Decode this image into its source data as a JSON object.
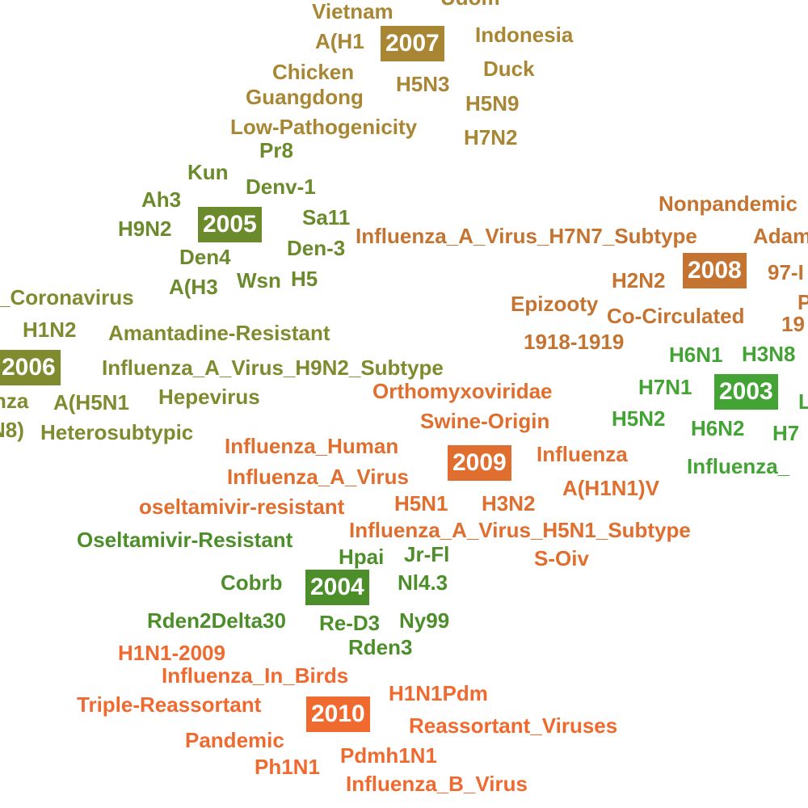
{
  "palette": {
    "2003": "#43a435",
    "2004": "#4c8f2a",
    "2005": "#6b8a2c",
    "2006": "#808a2e",
    "2007": "#a88634",
    "2008": "#c47430",
    "2009": "#e06e2e",
    "2010": "#f06a30"
  },
  "clusters": [
    {
      "year": "2007",
      "terms": [
        "Udom",
        "Vietnam",
        "A(H1",
        "Indonesia",
        "Chicken",
        "Duck",
        "H5N3",
        "Guangdong",
        "H5N9",
        "Low-Pathogenicity",
        "H7N2"
      ]
    },
    {
      "year": "2005",
      "terms": [
        "Pr8",
        "Kun",
        "Denv-1",
        "Ah3",
        "H9N2",
        "Sa11",
        "Den-3",
        "Den4",
        "A(H3",
        "Wsn",
        "H5"
      ]
    },
    {
      "year": "2006",
      "terms": [
        "_Coronavirus",
        "H1N2",
        "Amantadine-Resistant",
        "Influenza_A_Virus_H9N2_Subtype",
        "nza",
        "A(H5N1",
        "Hepevirus",
        "N8)",
        "Heterosubtypic"
      ]
    },
    {
      "year": "2008",
      "terms": [
        "Nonpandemic",
        "Influenza_A_Virus_H7N7_Subtype",
        "Adam",
        "97-I",
        "H2N2",
        "Epizooty",
        "Co-Circulated",
        "P",
        "19",
        "1918-1919"
      ]
    },
    {
      "year": "2003",
      "terms": [
        "H6N1",
        "H3N8",
        "H7N1",
        "L",
        "H5N2",
        "H6N2",
        "H7",
        "Influenza_"
      ]
    },
    {
      "year": "2009",
      "terms": [
        "Orthomyxoviridae",
        "Swine-Origin",
        "Influenza_Human",
        "Influenza",
        "Influenza_A_Virus",
        "A(H1N1)V",
        "oseltamivir-resistant",
        "H5N1",
        "H3N2",
        "Influenza_A_Virus_H5N1_Subtype",
        "S-Oiv"
      ]
    },
    {
      "year": "2004",
      "terms": [
        "Oseltamivir-Resistant",
        "Hpai",
        "Jr-Fl",
        "Cobrb",
        "Nl4.3",
        "Rden2Delta30",
        "Re-D3",
        "Ny99",
        "Rden3"
      ]
    },
    {
      "year": "2010",
      "terms": [
        "H1N1-2009",
        "Influenza_In_Birds",
        "H1N1Pdm",
        "Triple-Reassortant",
        "Reassortant_Viruses",
        "Pandemic",
        "Pdmh1N1",
        "Ph1N1",
        "Influenza_B_Virus"
      ]
    }
  ]
}
